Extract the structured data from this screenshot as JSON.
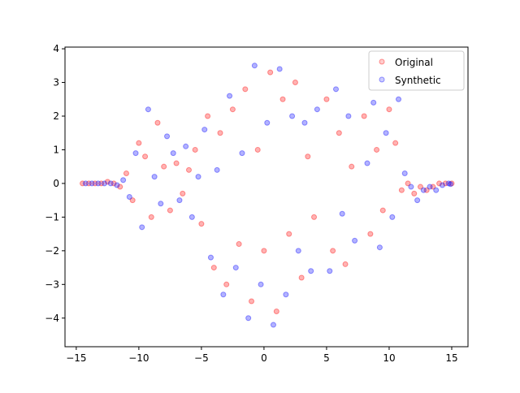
{
  "chart_data": {
    "type": "scatter",
    "xlim": [
      -15.9,
      16.3
    ],
    "ylim": [
      -4.85,
      4.05
    ],
    "xticks": [
      {
        "value": -15,
        "label": "−15"
      },
      {
        "value": -10,
        "label": "−10"
      },
      {
        "value": -5,
        "label": "−5"
      },
      0,
      5,
      10,
      15
    ],
    "yticks": [
      {
        "value": -4,
        "label": "−4"
      },
      {
        "value": -3,
        "label": "−3"
      },
      {
        "value": -2,
        "label": "−2"
      },
      {
        "value": -1,
        "label": "−1"
      },
      0,
      1,
      2,
      3,
      4
    ],
    "legend": "upper right",
    "series": [
      {
        "name": "Original",
        "color": "#ff0000",
        "opacity": 0.2,
        "x": [
          -14.5,
          -14,
          -13.5,
          -13,
          -12.5,
          -12,
          -11.5,
          -11,
          -10.5,
          -10,
          -9.5,
          -9,
          -8.5,
          -8,
          -7.5,
          -7,
          -6.5,
          -6,
          -5.5,
          -5,
          -4.5,
          -4,
          -3.5,
          -3,
          -2.5,
          -2,
          -1.5,
          -1,
          -0.5,
          0,
          0.5,
          1,
          1.5,
          2,
          2.5,
          3,
          3.5,
          4,
          5,
          5.5,
          6,
          6.5,
          7,
          8,
          8.5,
          9,
          9.5,
          10,
          10.5,
          11,
          11.5,
          12,
          12.5,
          13,
          13.5,
          14,
          14.5,
          15
        ],
        "values": [
          0,
          0,
          0,
          0,
          0.05,
          0,
          -0.1,
          0.3,
          -0.5,
          1.2,
          0.8,
          -1.0,
          1.8,
          0.5,
          -0.8,
          0.6,
          -0.3,
          0.4,
          1.0,
          -1.2,
          2.0,
          -2.5,
          1.5,
          -3.0,
          2.2,
          -1.8,
          2.8,
          -3.5,
          1.0,
          -2.0,
          3.3,
          -3.8,
          2.5,
          -1.5,
          3.0,
          -2.8,
          0.8,
          -1.0,
          2.5,
          -2.0,
          1.5,
          -2.4,
          0.5,
          2.0,
          -1.5,
          1.0,
          -0.8,
          2.2,
          1.2,
          -0.2,
          0,
          -0.3,
          -0.1,
          -0.2,
          -0.1,
          0,
          0,
          0
        ]
      },
      {
        "name": "Synthetic",
        "color": "#0000ff",
        "opacity": 0.2,
        "x": [
          -14.25,
          -13.75,
          -13.25,
          -12.75,
          -12.25,
          -11.75,
          -11.25,
          -10.75,
          -10.25,
          -9.75,
          -9.25,
          -8.75,
          -8.25,
          -7.75,
          -7.25,
          -6.75,
          -6.25,
          -5.75,
          -5.25,
          -4.75,
          -4.25,
          -3.75,
          -3.25,
          -2.75,
          -2.25,
          -1.75,
          -1.25,
          -0.75,
          -0.25,
          0.25,
          0.75,
          1.25,
          1.75,
          2.25,
          2.75,
          3.25,
          3.75,
          4.25,
          5.25,
          5.75,
          6.25,
          6.75,
          7.25,
          8.25,
          8.75,
          9.25,
          9.75,
          10.25,
          10.75,
          11.25,
          11.75,
          12.25,
          12.75,
          13.25,
          13.75,
          14.25,
          14.75,
          14.9
        ],
        "values": [
          0,
          0,
          0,
          0,
          0,
          -0.05,
          0.1,
          -0.4,
          0.9,
          -1.3,
          2.2,
          0.2,
          -0.6,
          1.4,
          0.9,
          -0.5,
          1.1,
          -1.0,
          0.2,
          1.6,
          -2.2,
          0.4,
          -3.3,
          2.6,
          -2.5,
          0.9,
          -4.0,
          3.5,
          -3.0,
          1.8,
          -4.2,
          3.4,
          -3.3,
          2.0,
          -2.0,
          1.8,
          -2.6,
          2.2,
          -2.6,
          2.8,
          -0.9,
          2.0,
          -1.7,
          0.6,
          2.4,
          -1.9,
          1.5,
          -1.0,
          2.5,
          0.3,
          -0.1,
          -0.5,
          -0.2,
          -0.1,
          -0.2,
          -0.05,
          0,
          -0.02
        ]
      }
    ]
  }
}
